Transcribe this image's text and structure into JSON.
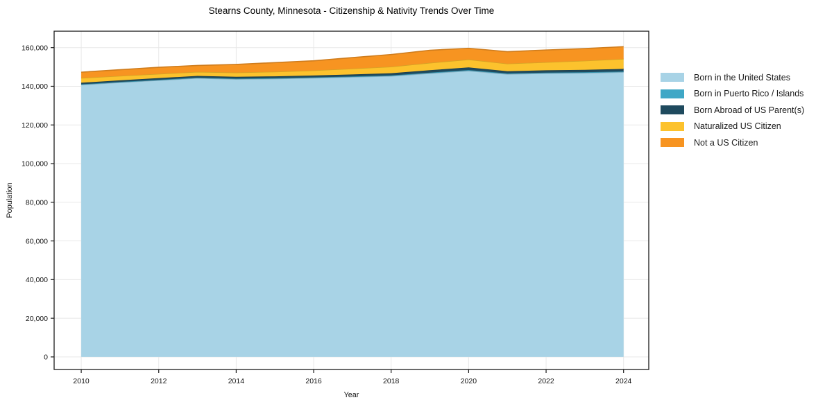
{
  "chart_data": {
    "type": "area",
    "stacked": true,
    "title": "Stearns County, Minnesota - Citizenship & Nativity Trends Over Time",
    "xlabel": "Year",
    "ylabel": "Population",
    "grid": true,
    "legend_position": "outside-right",
    "x": [
      2010,
      2011,
      2012,
      2013,
      2014,
      2015,
      2016,
      2017,
      2018,
      2019,
      2020,
      2021,
      2022,
      2023,
      2024
    ],
    "xlim": [
      2009.3,
      2024.65
    ],
    "ylim": [
      -6500,
      168500
    ],
    "xticks": {
      "values": [
        2010,
        2012,
        2014,
        2016,
        2018,
        2020,
        2022,
        2024
      ],
      "labels": [
        "2010",
        "2012",
        "2014",
        "2016",
        "2018",
        "2020",
        "2022",
        "2024"
      ]
    },
    "yticks": {
      "values": [
        0,
        20000,
        40000,
        60000,
        80000,
        100000,
        120000,
        140000,
        160000
      ],
      "labels": [
        "0",
        "20,000",
        "40,000",
        "60,000",
        "80,000",
        "100,000",
        "120,000",
        "140,000",
        "160,000"
      ]
    },
    "series": [
      {
        "name": "Born in the United States",
        "color": "#a8d3e6",
        "values": [
          140800,
          142000,
          143100,
          144200,
          143700,
          143900,
          144300,
          144800,
          145300,
          146700,
          148000,
          146300,
          146700,
          146900,
          147300
        ]
      },
      {
        "name": "Born in Puerto Rico / Islands",
        "color": "#3fa7c6",
        "values": [
          250,
          260,
          270,
          280,
          290,
          300,
          310,
          320,
          340,
          380,
          420,
          360,
          370,
          380,
          390
        ]
      },
      {
        "name": "Born Abroad of US Parent(s)",
        "color": "#1f4a5e",
        "values": [
          800,
          830,
          860,
          890,
          920,
          950,
          980,
          1020,
          1100,
          1250,
          1350,
          1150,
          1200,
          1250,
          1300
        ]
      },
      {
        "name": "Naturalized US Citizen",
        "color": "#fcc22d",
        "values": [
          2450,
          2300,
          2200,
          2100,
          2200,
          2400,
          2600,
          3000,
          3400,
          3800,
          4100,
          3900,
          4200,
          4700,
          5200
        ]
      },
      {
        "name": "Not a US Citizen",
        "color": "#f79421",
        "values": [
          3000,
          3200,
          3400,
          3300,
          4200,
          4700,
          5000,
          5700,
          6300,
          6500,
          5800,
          6200,
          6300,
          6300,
          6300
        ]
      }
    ],
    "colors": {
      "grid": "#e8e8e8",
      "spine": "#1a1a1a",
      "tick_label": "#111111",
      "background": "#ffffff"
    }
  }
}
